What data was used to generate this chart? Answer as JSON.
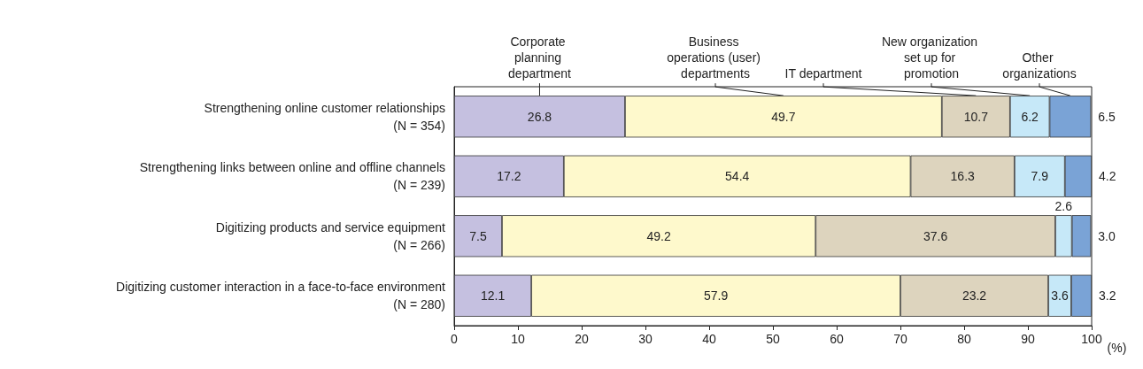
{
  "chart_data": {
    "type": "bar",
    "orientation": "horizontal",
    "stacked": true,
    "xlabel": "(%)",
    "xlim": [
      0,
      100
    ],
    "xticks": [
      0,
      10,
      20,
      30,
      40,
      50,
      60,
      70,
      80,
      90,
      100
    ],
    "categories": [
      "Strengthening online customer relationships\n(N = 354)",
      "Strengthening links between online and offline channels\n(N = 239)",
      "Digitizing products and service equipment\n(N = 266)",
      "Digitizing customer interaction in a face-to-face environment\n(N = 280)"
    ],
    "series": [
      {
        "name": "Corporate planning department",
        "color": "#c5c0e0",
        "values": [
          26.8,
          17.2,
          7.5,
          12.1
        ],
        "value_labels": [
          "26.8",
          "17.2",
          "7.5",
          "12.1"
        ]
      },
      {
        "name": "Business operations (user) departments",
        "color": "#fef9cc",
        "values": [
          49.7,
          54.4,
          49.2,
          57.9
        ],
        "value_labels": [
          "49.7",
          "54.4",
          "49.2",
          "57.9"
        ]
      },
      {
        "name": "IT department",
        "color": "#ddd4be",
        "values": [
          10.7,
          16.3,
          37.6,
          23.2
        ],
        "value_labels": [
          "10.7",
          "16.3",
          "37.6",
          "23.2"
        ]
      },
      {
        "name": "New organization set up for promotion",
        "color": "#c6e8f8",
        "values": [
          6.2,
          7.9,
          2.6,
          3.6
        ],
        "value_labels": [
          "6.2",
          "7.9",
          "2.6",
          "3.6"
        ]
      },
      {
        "name": "Other organizations",
        "color": "#7aa3d6",
        "values": [
          6.5,
          4.2,
          3.0,
          3.2
        ],
        "value_labels": [
          "6.5",
          "4.2",
          "3.0",
          "3.2"
        ]
      }
    ]
  }
}
